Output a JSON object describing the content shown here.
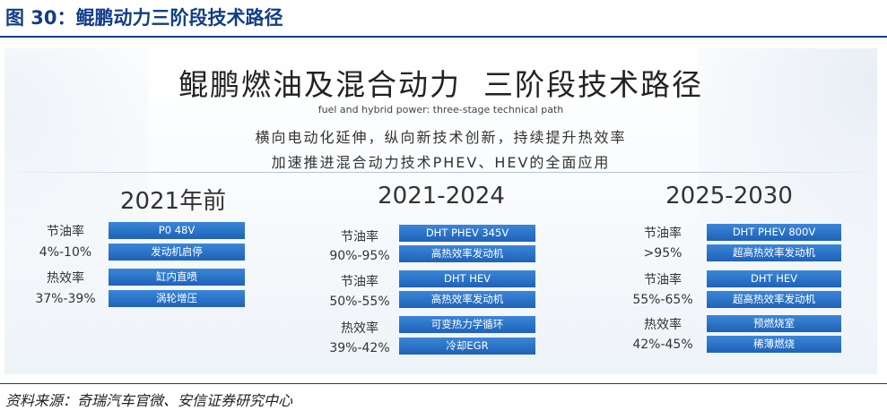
{
  "figure": {
    "title": "图 30：鲲鹏动力三阶段技术路径"
  },
  "panel": {
    "title": "鲲鹏燃油及混合动力  三阶段技术路径",
    "subtitle_en": "fuel and hybrid power: three-stage technical path",
    "desc_line1": "横向电动化延伸，纵向新技术创新，持续提升热效率",
    "desc_line2": "加速推进混合动力技术PHEV、HEV的全面应用"
  },
  "stages": [
    {
      "period": "2021年前",
      "groups": [
        {
          "metric": "节油率",
          "value": "4%-10%",
          "items": [
            "P0 48V",
            "发动机启停"
          ]
        },
        {
          "metric": "热效率",
          "value": "37%-39%",
          "items": [
            "缸内直喷",
            "涡轮增压"
          ]
        }
      ]
    },
    {
      "period": "2021-2024",
      "groups": [
        {
          "metric": "节油率",
          "value": "90%-95%",
          "items": [
            "DHT PHEV 345V",
            "高热效率发动机"
          ]
        },
        {
          "metric": "节油率",
          "value": "50%-55%",
          "items": [
            "DHT HEV",
            "高热效率发动机"
          ]
        },
        {
          "metric": "热效率",
          "value": "39%-42%",
          "items": [
            "可变热力学循环",
            "冷却EGR"
          ]
        }
      ]
    },
    {
      "period": "2025-2030",
      "groups": [
        {
          "metric": "节油率",
          "value": ">95%",
          "items": [
            "DHT PHEV 800V",
            "超高热效率发动机"
          ]
        },
        {
          "metric": "节油率",
          "value": "55%-65%",
          "items": [
            "DHT HEV",
            "超高热效率发动机"
          ]
        },
        {
          "metric": "热效率",
          "value": "42%-45%",
          "items": [
            "预燃烧室",
            "稀薄燃烧"
          ]
        }
      ]
    }
  ],
  "source": "资料来源：奇瑞汽车官微、安信证券研究中心"
}
